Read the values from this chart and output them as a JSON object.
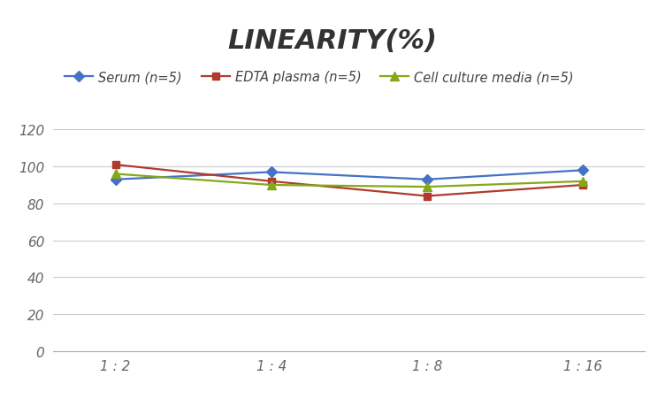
{
  "title": "LINEARITY(%)",
  "x_labels": [
    "1 : 2",
    "1 : 4",
    "1 : 8",
    "1 : 16"
  ],
  "x_positions": [
    0,
    1,
    2,
    3
  ],
  "series": [
    {
      "label": "Serum (n=5)",
      "values": [
        93,
        97,
        93,
        98
      ],
      "color": "#4472C4",
      "marker": "D",
      "marker_size": 6,
      "linewidth": 1.6
    },
    {
      "label": "EDTA plasma (n=5)",
      "values": [
        101,
        92,
        84,
        90
      ],
      "color": "#B03A2E",
      "marker": "s",
      "marker_size": 6,
      "linewidth": 1.6
    },
    {
      "label": "Cell culture media (n=5)",
      "values": [
        96,
        90,
        89,
        92
      ],
      "color": "#85A81A",
      "marker": "^",
      "marker_size": 7,
      "linewidth": 1.6
    }
  ],
  "ylim": [
    0,
    130
  ],
  "yticks": [
    0,
    20,
    40,
    60,
    80,
    100,
    120
  ],
  "background_color": "#ffffff",
  "grid_color": "#cccccc",
  "title_fontsize": 22,
  "title_color": "#333333",
  "legend_fontsize": 10.5,
  "tick_fontsize": 11,
  "tick_color": "#666666"
}
